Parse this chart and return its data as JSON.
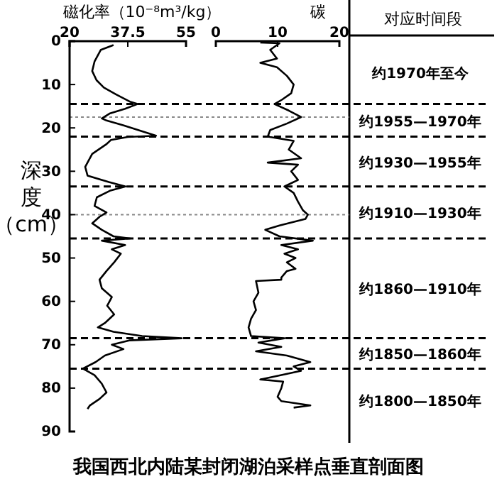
{
  "chart_data": [
    {
      "type": "line",
      "xlabel": "磁化率（10⁻⁸m³/kg）",
      "ylabel": "深度（cm）",
      "xlim": [
        20,
        55
      ],
      "xticks": [
        20,
        37.5,
        55
      ],
      "ylim": [
        90,
        0
      ],
      "yticks": [
        0,
        10,
        20,
        30,
        40,
        50,
        60,
        70,
        80,
        90
      ],
      "marker": "none",
      "line_style": "solid",
      "annotations": [
        "对应时间段",
        "约1970年至今",
        "约1955—1970年",
        "约1930—1955年",
        "约1910—1930年",
        "约1860—1910年",
        "约1850—1860年",
        "约1800—1850年",
        "我国西北内陆某封闭湖泊采样点垂直剖面图"
      ],
      "series": [
        {
          "color": "#000000",
          "x": [
            33.2,
            29.4,
            27.5,
            26.8,
            28.1,
            30.3,
            34,
            38.3,
            40.4,
            36.7,
            32,
            29.7,
            31.1,
            36.1,
            41.8,
            46,
            37.5,
            32.4,
            31,
            26.8,
            24.7,
            25.4,
            31.8,
            36.8,
            32.1,
            28.2,
            27.5,
            31.1,
            29,
            26.8,
            29.7,
            33.2,
            38.2,
            29.7,
            36.7,
            32.7,
            35.4,
            33.4,
            31.1,
            29,
            29.7,
            32.7,
            31.3,
            33.4,
            30.6,
            28.5,
            33.2,
            41.8,
            53.7,
            37.9,
            32.7,
            36.2,
            30.6,
            27.8,
            24,
            27.5,
            29.7,
            31.1,
            29,
            26.1,
            25.4
          ],
          "values": [
            0.9,
            2,
            4.7,
            6.9,
            9,
            10.7,
            12.3,
            14,
            14.5,
            15.6,
            16.7,
            17.8,
            18.3,
            19.4,
            20.8,
            21.8,
            22.1,
            22.8,
            23.8,
            26,
            29,
            31,
            32.5,
            33.5,
            34.5,
            36,
            38,
            39.5,
            40.5,
            42,
            43.5,
            45,
            45.5,
            46,
            47,
            48,
            49,
            51,
            53,
            55,
            57,
            59,
            61,
            63,
            65,
            66,
            67,
            68,
            68.5,
            69,
            70,
            71,
            72.5,
            74,
            75.5,
            77,
            79,
            81,
            82.5,
            84,
            84.8
          ]
        }
      ],
      "ref_lines": [
        {
          "axis": "y",
          "value": 14.5,
          "color": "#000000",
          "line_style": "dashed"
        },
        {
          "axis": "y",
          "value": 17.5,
          "color": "#888888",
          "line_style": "dotted"
        },
        {
          "axis": "y",
          "value": 22,
          "color": "#000000",
          "line_style": "dashed"
        },
        {
          "axis": "y",
          "value": 33.5,
          "color": "#000000",
          "line_style": "dashed"
        },
        {
          "axis": "y",
          "value": 40,
          "color": "#888888",
          "line_style": "dotted"
        },
        {
          "axis": "y",
          "value": 45.5,
          "color": "#000000",
          "line_style": "dashed"
        },
        {
          "axis": "y",
          "value": 68.5,
          "color": "#000000",
          "line_style": "dashed"
        },
        {
          "axis": "y",
          "value": 75.5,
          "color": "#000000",
          "line_style": "dashed"
        }
      ]
    },
    {
      "type": "line",
      "xlabel": "碳",
      "xlim": [
        0,
        20
      ],
      "xticks": [
        0,
        10,
        20
      ],
      "ylim": [
        90,
        0
      ],
      "tick_labels": "x",
      "marker": "none",
      "line_style": "solid",
      "series": [
        {
          "color": "#000000",
          "x": [
            7.2,
            10.3,
            8.8,
            9.9,
            7.2,
            9.9,
            11.5,
            12.6,
            12.2,
            10.7,
            9.5,
            11.8,
            13.8,
            11.5,
            8.8,
            8.4,
            12.6,
            11.8,
            13.8,
            8.4,
            13.3,
            12.2,
            13.3,
            11.1,
            12.6,
            13.3,
            14.1,
            14.9,
            14.5,
            10.3,
            8,
            10.3,
            15.7,
            10.6,
            13.3,
            11.1,
            12.9,
            11.5,
            12.9,
            11.5,
            10.6,
            10.6,
            6.5,
            6.9,
            6.1,
            6.5,
            5.7,
            5.3,
            5.7,
            11.1,
            6.9,
            10.6,
            6.5,
            11.5,
            15.3,
            12.6,
            13.8,
            10.6,
            7.2,
            10.9,
            10.6,
            10,
            10.6,
            15.3,
            12.6
          ],
          "values": [
            0.3,
            0.5,
            2,
            4,
            5,
            6,
            8,
            10,
            12,
            13.5,
            14.5,
            16,
            17.5,
            19,
            20.5,
            22,
            23,
            25,
            27,
            28,
            28.5,
            30,
            32,
            33.5,
            35,
            37,
            39,
            40,
            41,
            42.5,
            43.5,
            45,
            46,
            47,
            48,
            49,
            50,
            51,
            52.5,
            53,
            54.5,
            55,
            55.3,
            58,
            60,
            62,
            64,
            66,
            68,
            68.5,
            69.5,
            70.5,
            71.5,
            72.5,
            74,
            75,
            76,
            77,
            78,
            78.5,
            80,
            82,
            83,
            84,
            84.5
          ]
        }
      ]
    }
  ]
}
